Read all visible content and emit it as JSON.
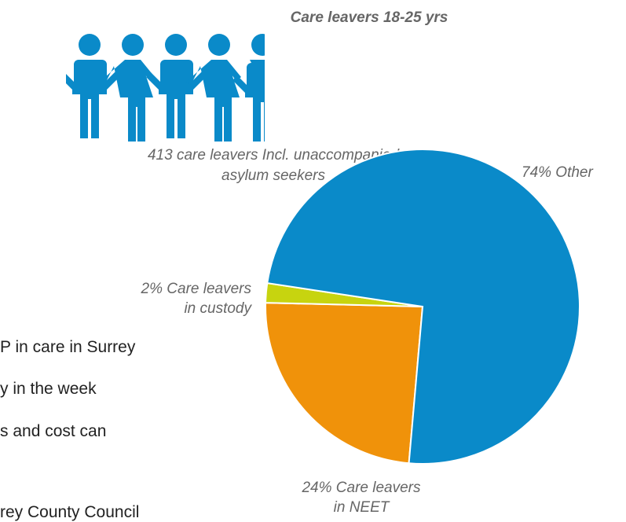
{
  "chart_data": {
    "type": "pie",
    "title": "Care leavers 18-25 yrs",
    "series": [
      {
        "label": "74% Other",
        "value": 74,
        "color": "#0a8ac9"
      },
      {
        "label": "24% Care leavers in NEET",
        "label_lines": [
          "24% Care leavers",
          "in NEET"
        ],
        "value": 24,
        "color": "#f0920a"
      },
      {
        "label": "2% Care leavers in custody",
        "label_lines": [
          "2% Care leavers",
          "in custody"
        ],
        "value": 2,
        "color": "#c7d40f"
      }
    ]
  },
  "people_label": [
    "413 care leavers Incl. unaccompanied",
    "asylum seekers"
  ],
  "people_icon": "person-icon",
  "people_color": "#0a8ac9",
  "body_text": [
    "P in care in Surrey",
    "y in the week",
    "s and cost can",
    "rey County Council"
  ]
}
